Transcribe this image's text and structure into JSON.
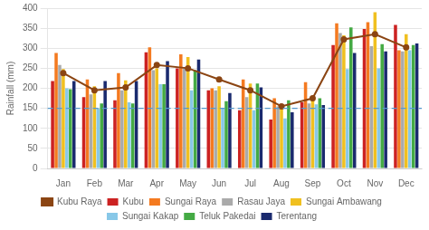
{
  "chart_data": {
    "type": "bar",
    "ylabel": "Rainfall (mm)",
    "categories": [
      "Jan",
      "Feb",
      "Mar",
      "Apr",
      "May",
      "Jun",
      "Jul",
      "Aug",
      "Sep",
      "Oct",
      "Nov",
      "Dec"
    ],
    "series": [
      {
        "name": "Kubu",
        "color": "#cc2222",
        "values": [
          218,
          178,
          170,
          290,
          250,
          195,
          145,
          122,
          165,
          308,
          348,
          358
        ]
      },
      {
        "name": "Sungai Raya",
        "color": "#f47a20",
        "values": [
          288,
          222,
          238,
          302,
          285,
          200,
          222,
          175,
          215,
          362,
          365,
          295
        ]
      },
      {
        "name": "Rasau Jaya",
        "color": "#aaaaaa",
        "values": [
          258,
          185,
          195,
          245,
          250,
          195,
          178,
          155,
          162,
          338,
          305,
          292
        ]
      },
      {
        "name": "Sungai Ambawang",
        "color": "#f0c020",
        "values": [
          248,
          205,
          220,
          250,
          278,
          205,
          212,
          158,
          178,
          332,
          390,
          335
        ]
      },
      {
        "name": "Sungai Kakap",
        "color": "#88c8e8",
        "values": [
          200,
          150,
          165,
          210,
          195,
          150,
          145,
          125,
          160,
          248,
          250,
          295
        ]
      },
      {
        "name": "Teluk Pakedai",
        "color": "#44aa44",
        "values": [
          198,
          162,
          162,
          210,
          245,
          168,
          212,
          170,
          175,
          352,
          310,
          308
        ]
      },
      {
        "name": "Terentang",
        "color": "#1a2a6e",
        "values": [
          218,
          218,
          218,
          268,
          272,
          188,
          202,
          140,
          158,
          288,
          292,
          312
        ]
      },
      {
        "name": "Kubu Raya",
        "color": "#8B4513",
        "type": "line",
        "marker": "circle",
        "line_style": "solid",
        "values": [
          238,
          195,
          202,
          258,
          250,
          222,
          195,
          155,
          175,
          322,
          335,
          302
        ]
      }
    ],
    "hlines": [
      {
        "value": 150,
        "color": "#5599cc",
        "line_style": "dashed"
      }
    ],
    "ylim": [
      0,
      400
    ],
    "yticks": [
      0,
      50,
      100,
      150,
      200,
      250,
      300,
      350,
      400
    ],
    "grid": true,
    "legend": "bottom"
  }
}
